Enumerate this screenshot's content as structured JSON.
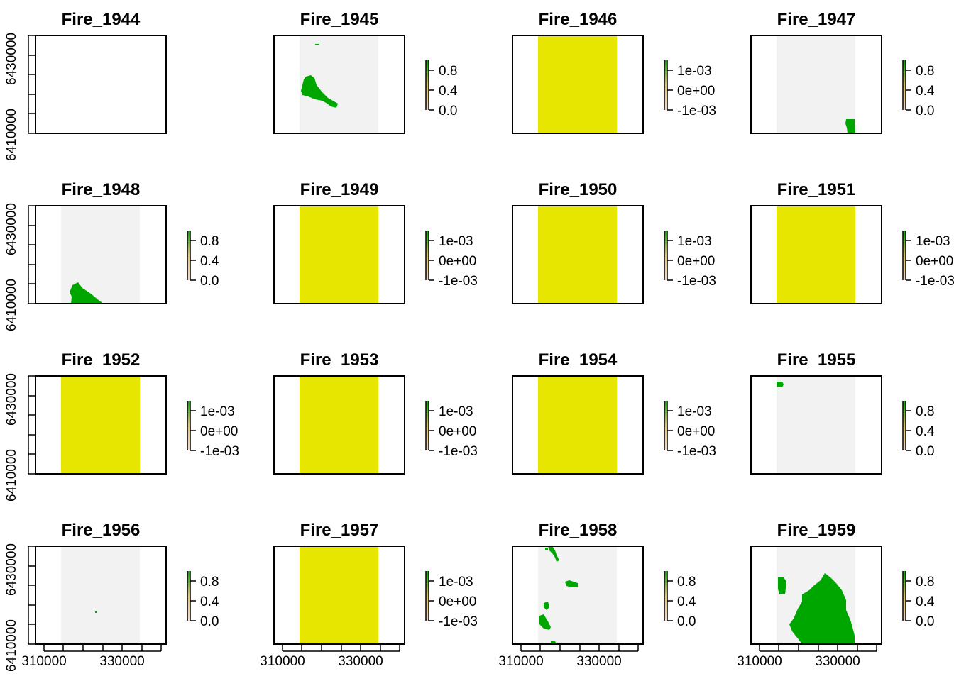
{
  "figure": {
    "xticks": [
      "310000",
      "330000"
    ],
    "yticks": [
      "6410000",
      "6430000"
    ]
  },
  "chart_data": [
    {
      "type": "heatmap",
      "title": "Fire_1944",
      "state": "empty",
      "legend_ticks": []
    },
    {
      "type": "heatmap",
      "title": "Fire_1945",
      "state": "burn",
      "legend_ticks": [
        "0.8",
        "0.4",
        "0.0"
      ]
    },
    {
      "type": "heatmap",
      "title": "Fire_1946",
      "state": "zero",
      "legend_ticks": [
        "1e-03",
        "0e+00",
        "-1e-03"
      ]
    },
    {
      "type": "heatmap",
      "title": "Fire_1947",
      "state": "burn",
      "legend_ticks": [
        "0.8",
        "0.4",
        "0.0"
      ]
    },
    {
      "type": "heatmap",
      "title": "Fire_1948",
      "state": "burn",
      "legend_ticks": [
        "0.8",
        "0.4",
        "0.0"
      ]
    },
    {
      "type": "heatmap",
      "title": "Fire_1949",
      "state": "zero",
      "legend_ticks": [
        "1e-03",
        "0e+00",
        "-1e-03"
      ]
    },
    {
      "type": "heatmap",
      "title": "Fire_1950",
      "state": "zero",
      "legend_ticks": [
        "1e-03",
        "0e+00",
        "-1e-03"
      ]
    },
    {
      "type": "heatmap",
      "title": "Fire_1951",
      "state": "zero",
      "legend_ticks": [
        "1e-03",
        "0e+00",
        "-1e-03"
      ]
    },
    {
      "type": "heatmap",
      "title": "Fire_1952",
      "state": "zero",
      "legend_ticks": [
        "1e-03",
        "0e+00",
        "-1e-03"
      ]
    },
    {
      "type": "heatmap",
      "title": "Fire_1953",
      "state": "zero",
      "legend_ticks": [
        "1e-03",
        "0e+00",
        "-1e-03"
      ]
    },
    {
      "type": "heatmap",
      "title": "Fire_1954",
      "state": "zero",
      "legend_ticks": [
        "1e-03",
        "0e+00",
        "-1e-03"
      ]
    },
    {
      "type": "heatmap",
      "title": "Fire_1955",
      "state": "burn",
      "legend_ticks": [
        "0.8",
        "0.4",
        "0.0"
      ]
    },
    {
      "type": "heatmap",
      "title": "Fire_1956",
      "state": "burn",
      "legend_ticks": [
        "0.8",
        "0.4",
        "0.0"
      ]
    },
    {
      "type": "heatmap",
      "title": "Fire_1957",
      "state": "zero",
      "legend_ticks": [
        "1e-03",
        "0e+00",
        "-1e-03"
      ]
    },
    {
      "type": "heatmap",
      "title": "Fire_1958",
      "state": "burn",
      "legend_ticks": [
        "0.8",
        "0.4",
        "0.0"
      ]
    },
    {
      "type": "heatmap",
      "title": "Fire_1959",
      "state": "burn",
      "legend_ticks": [
        "0.8",
        "0.4",
        "0.0"
      ]
    }
  ],
  "colors": {
    "burn": "#00a600",
    "unburned": "#f2f2f2",
    "zero": "#e6e600",
    "legend_low": "#f2d9c9",
    "legend_mid": "#e6c36b"
  }
}
